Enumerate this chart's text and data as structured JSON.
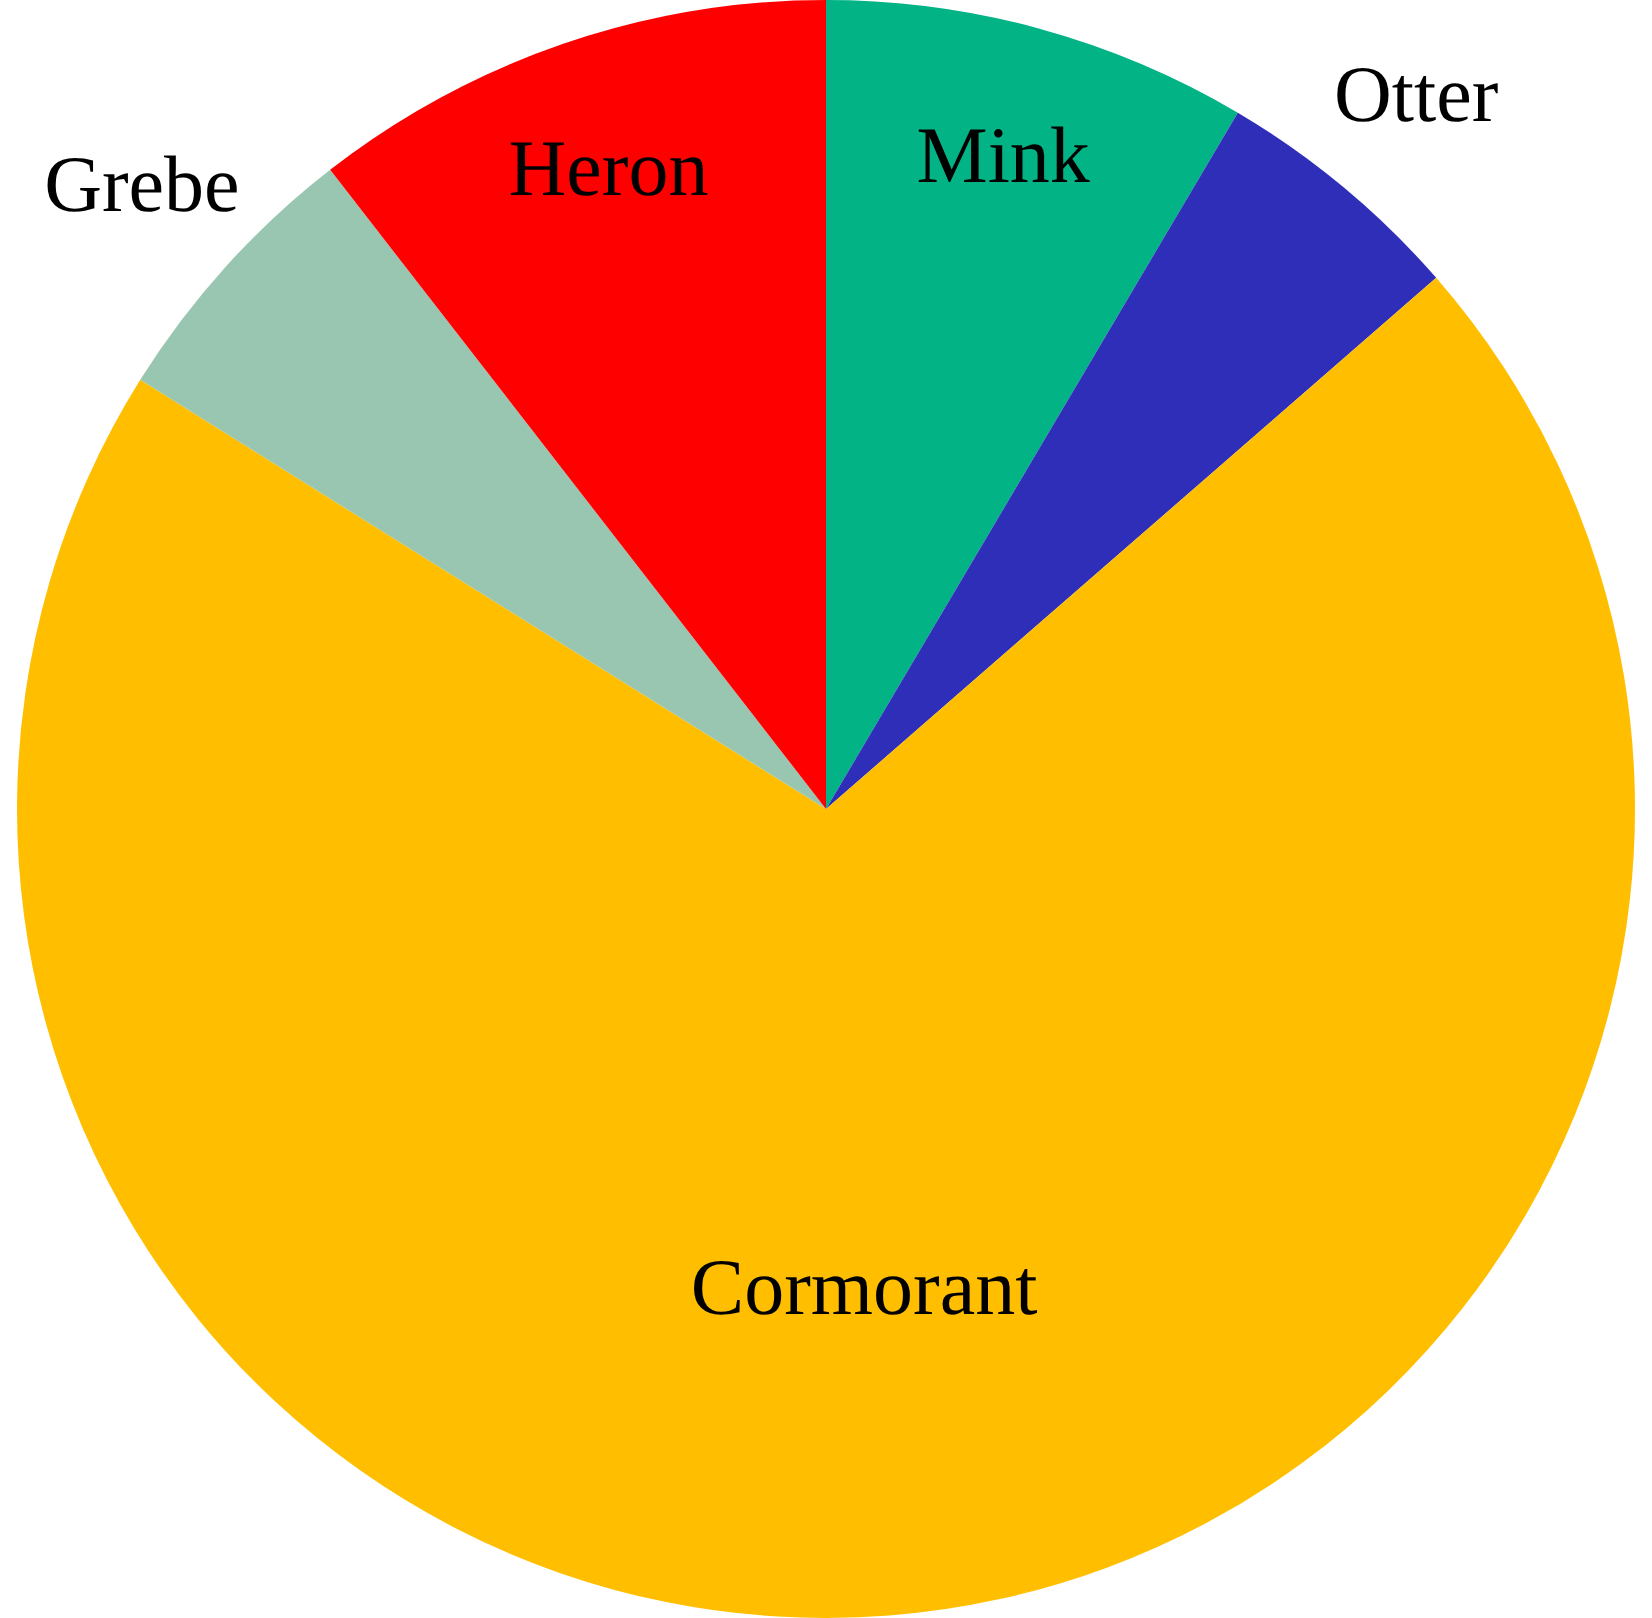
{
  "chart_data": {
    "type": "pie",
    "categories": [
      "Mink",
      "Otter",
      "Cormorant",
      "Grebe",
      "Heron"
    ],
    "values": [
      8.5,
      5.1,
      70.3,
      5.6,
      10.5
    ],
    "colors": [
      "#02b386",
      "#2e2eb8",
      "#ffbf00",
      "#98c6b1",
      "#ff0000"
    ],
    "legend": false
  }
}
